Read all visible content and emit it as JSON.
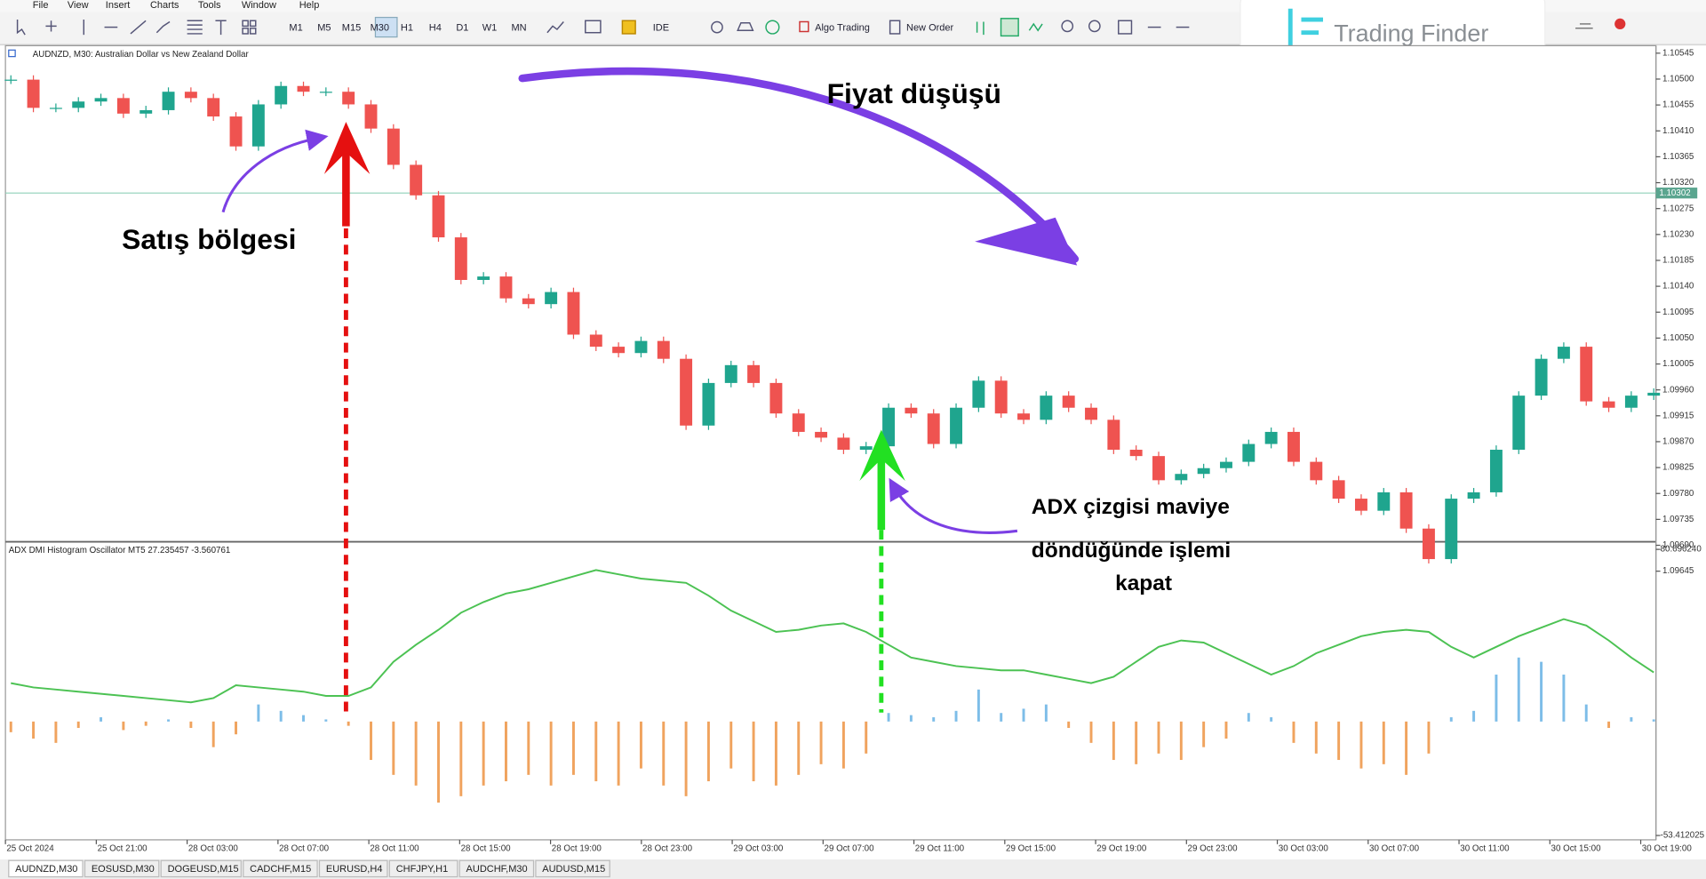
{
  "menu": [
    "File",
    "View",
    "Insert",
    "Charts",
    "Tools",
    "Window",
    "Help"
  ],
  "toolbar": {
    "timeframes": [
      "M1",
      "M5",
      "M15",
      "M30",
      "H1",
      "H4",
      "D1",
      "W1",
      "MN"
    ],
    "ide": "IDE",
    "algo": "Algo Trading",
    "order": "New Order"
  },
  "logo": "Trading Finder",
  "chart": {
    "title": "AUDNZD, M30:  Australian Dollar vs New Zealand Dollar",
    "indicator_label": "ADX DMI Histogram Oscillator MT5 27.235457 -3.560761",
    "ylim": [
      1.09698,
      1.10558
    ],
    "price_ticks": [
      1.10545,
      {
        "value": 1.105,
        "label": "1.10500"
      },
      1.10455,
      {
        "value": 1.1041,
        "label": "1.10410"
      },
      1.10365,
      {
        "value": 1.1032,
        "label": "1.10320"
      },
      1.10275,
      {
        "value": 1.1023,
        "label": "1.10230"
      },
      1.10185,
      {
        "value": 1.1014,
        "label": "1.10140"
      },
      1.10095,
      {
        "value": 1.1005,
        "label": "1.10050"
      },
      1.10005,
      {
        "value": 1.0996,
        "label": "1.09960"
      },
      1.09915,
      {
        "value": 1.0987,
        "label": "1.09870"
      },
      1.09825,
      {
        "value": 1.0978,
        "label": "1.09780"
      },
      1.09735,
      {
        "value": 1.0969,
        "label": "1.09690"
      },
      1.09645
    ],
    "current_price": 1.10302,
    "ind_ylim": [
      -53.412025,
      80.69624
    ],
    "ind_ticks": [
      {
        "value": 80.69624,
        "label": "80.696240"
      },
      -53.412025
    ],
    "time_labels": [
      "25 Oct 2024",
      "25 Oct 21:00",
      "28 Oct 03:00",
      "28 Oct 07:00",
      "28 Oct 11:00",
      "28 Oct 15:00",
      "28 Oct 19:00",
      "28 Oct 23:00",
      "29 Oct 03:00",
      "29 Oct 07:00",
      "29 Oct 11:00",
      "29 Oct 15:00",
      "29 Oct 19:00",
      "29 Oct 23:00",
      "30 Oct 03:00",
      "30 Oct 07:00",
      "30 Oct 11:00",
      "30 Oct 15:00",
      "30 Oct 19:00"
    ],
    "closes": [
      1.10499,
      1.1045,
      1.1045,
      1.10461,
      1.10467,
      1.1044,
      1.10446,
      1.10478,
      1.10467,
      1.10435,
      1.10383,
      1.10456,
      1.10488,
      1.10478,
      1.10478,
      1.10456,
      1.10414,
      1.10351,
      1.10298,
      1.10225,
      1.10151,
      1.10157,
      1.10119,
      1.10109,
      1.1013,
      1.10056,
      1.10035,
      1.10024,
      1.10045,
      1.10014,
      1.09898,
      1.09972,
      1.10003,
      1.09972,
      1.09919,
      1.09887,
      1.09877,
      1.09856,
      1.09862,
      1.09929,
      1.09919,
      1.09866,
      1.09929,
      1.09976,
      1.09919,
      1.09908,
      1.0995,
      1.09929,
      1.09908,
      1.09856,
      1.09845,
      1.09803,
      1.09814,
      1.09824,
      1.09835,
      1.09866,
      1.09887,
      1.09835,
      1.09803,
      1.09771,
      1.0975,
      1.09782,
      1.09719,
      1.09666,
      1.09771,
      1.09782,
      1.09856,
      1.0995,
      1.10014,
      1.10035,
      1.0994,
      1.09929,
      1.0995,
      1.09955
    ],
    "histogram": [
      -5,
      -8,
      -10,
      -3,
      2,
      -4,
      -2,
      1,
      -3,
      -12,
      -6,
      8,
      5,
      3,
      1,
      -2,
      -18,
      -25,
      -30,
      -38,
      -35,
      -30,
      -28,
      -25,
      -30,
      -25,
      -28,
      -30,
      -22,
      -30,
      -35,
      -28,
      -22,
      -28,
      -30,
      -25,
      -20,
      -22,
      -15,
      4,
      3,
      2,
      5,
      15,
      4,
      6,
      8,
      -3,
      -10,
      -18,
      -20,
      -15,
      -18,
      -12,
      -8,
      4,
      2,
      -10,
      -15,
      -18,
      -22,
      -20,
      -25,
      -15,
      2,
      5,
      22,
      30,
      28,
      22,
      8,
      -3,
      2,
      1
    ],
    "adx": [
      18,
      16,
      15,
      14,
      13,
      12,
      11,
      10,
      9,
      11,
      17,
      16,
      15,
      14,
      12,
      12,
      16,
      28,
      36,
      43,
      51,
      56,
      60,
      62,
      65,
      68,
      71,
      69,
      67,
      66,
      65,
      59,
      52,
      47,
      42,
      43,
      45,
      46,
      42,
      36,
      30,
      28,
      26,
      25,
      24,
      24,
      22,
      20,
      18,
      21,
      28,
      35,
      38,
      37,
      32,
      27,
      22,
      26,
      32,
      36,
      40,
      42,
      43,
      42,
      35,
      30,
      35,
      40,
      44,
      48,
      45,
      38,
      30,
      23
    ],
    "bull_color": "#1fa58e",
    "bear_color": "#ef5350",
    "hist_up_color": "#7dbde8",
    "hist_down_color": "#f0a35e",
    "adx_color": "#4cc253"
  },
  "annotations": {
    "drop": "Fiyat düşüşü",
    "sell": "Satış bölgesi",
    "close1": "ADX çizgisi maviye",
    "close2": "döndüğünde işlemi",
    "close3": "kapat"
  },
  "tabs": [
    "AUDNZD,M30",
    "EOSUSD,M30",
    "DOGEUSD,M15",
    "CADCHF,M15",
    "EURUSD,H4",
    "CHFJPY,H1",
    "AUDCHF,M30",
    "AUDUSD,M15"
  ]
}
